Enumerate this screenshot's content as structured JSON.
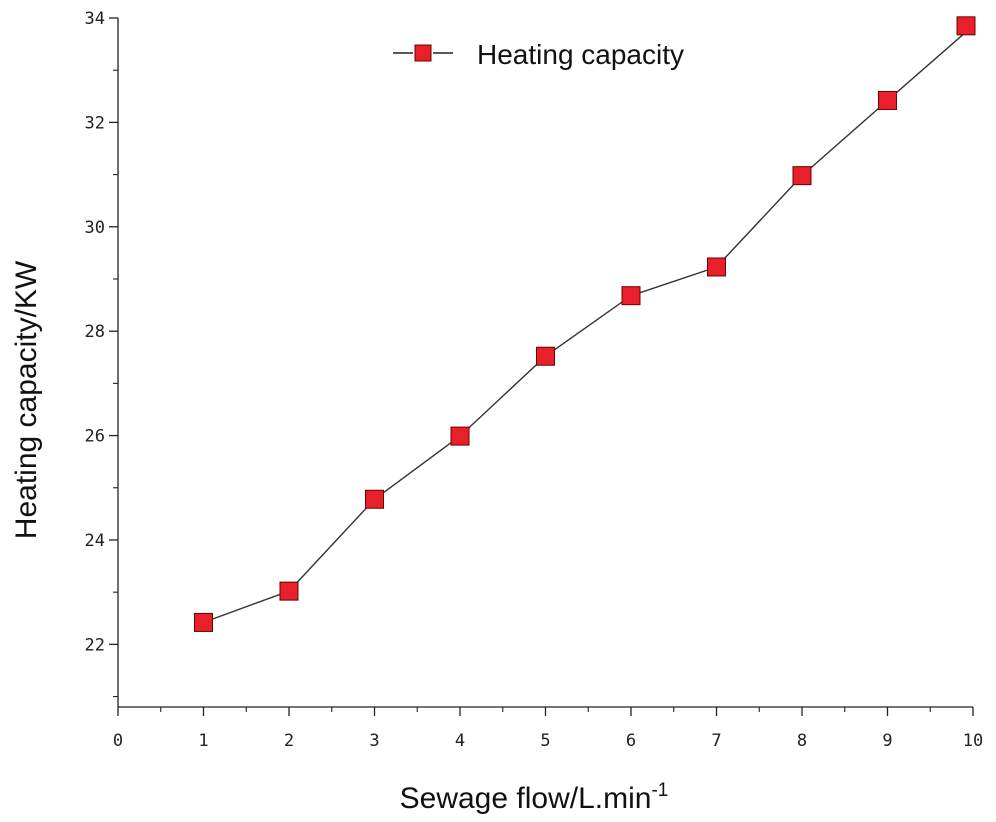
{
  "chart_data": {
    "type": "line",
    "title": "",
    "xlabel": "Sewage flow/L.min",
    "xlabel_superscript": "-1",
    "ylabel": "Heating capacity/KW",
    "xlim": [
      0,
      10
    ],
    "ylim": [
      20.8,
      34
    ],
    "x_ticks": [
      0,
      1,
      2,
      3,
      4,
      5,
      6,
      7,
      8,
      9,
      10
    ],
    "y_ticks": [
      22,
      24,
      26,
      28,
      30,
      32,
      34
    ],
    "grid": false,
    "legend_position": "top-center",
    "series": [
      {
        "name": "Heating capacity",
        "marker": "square",
        "color": "#e8202a",
        "line_color": "#333333",
        "x": [
          1,
          2,
          3,
          4,
          5,
          6,
          7,
          8,
          9,
          10
        ],
        "values": [
          22.42,
          23.02,
          24.78,
          25.99,
          27.52,
          28.68,
          29.23,
          30.98,
          32.42,
          33.85
        ]
      }
    ]
  }
}
